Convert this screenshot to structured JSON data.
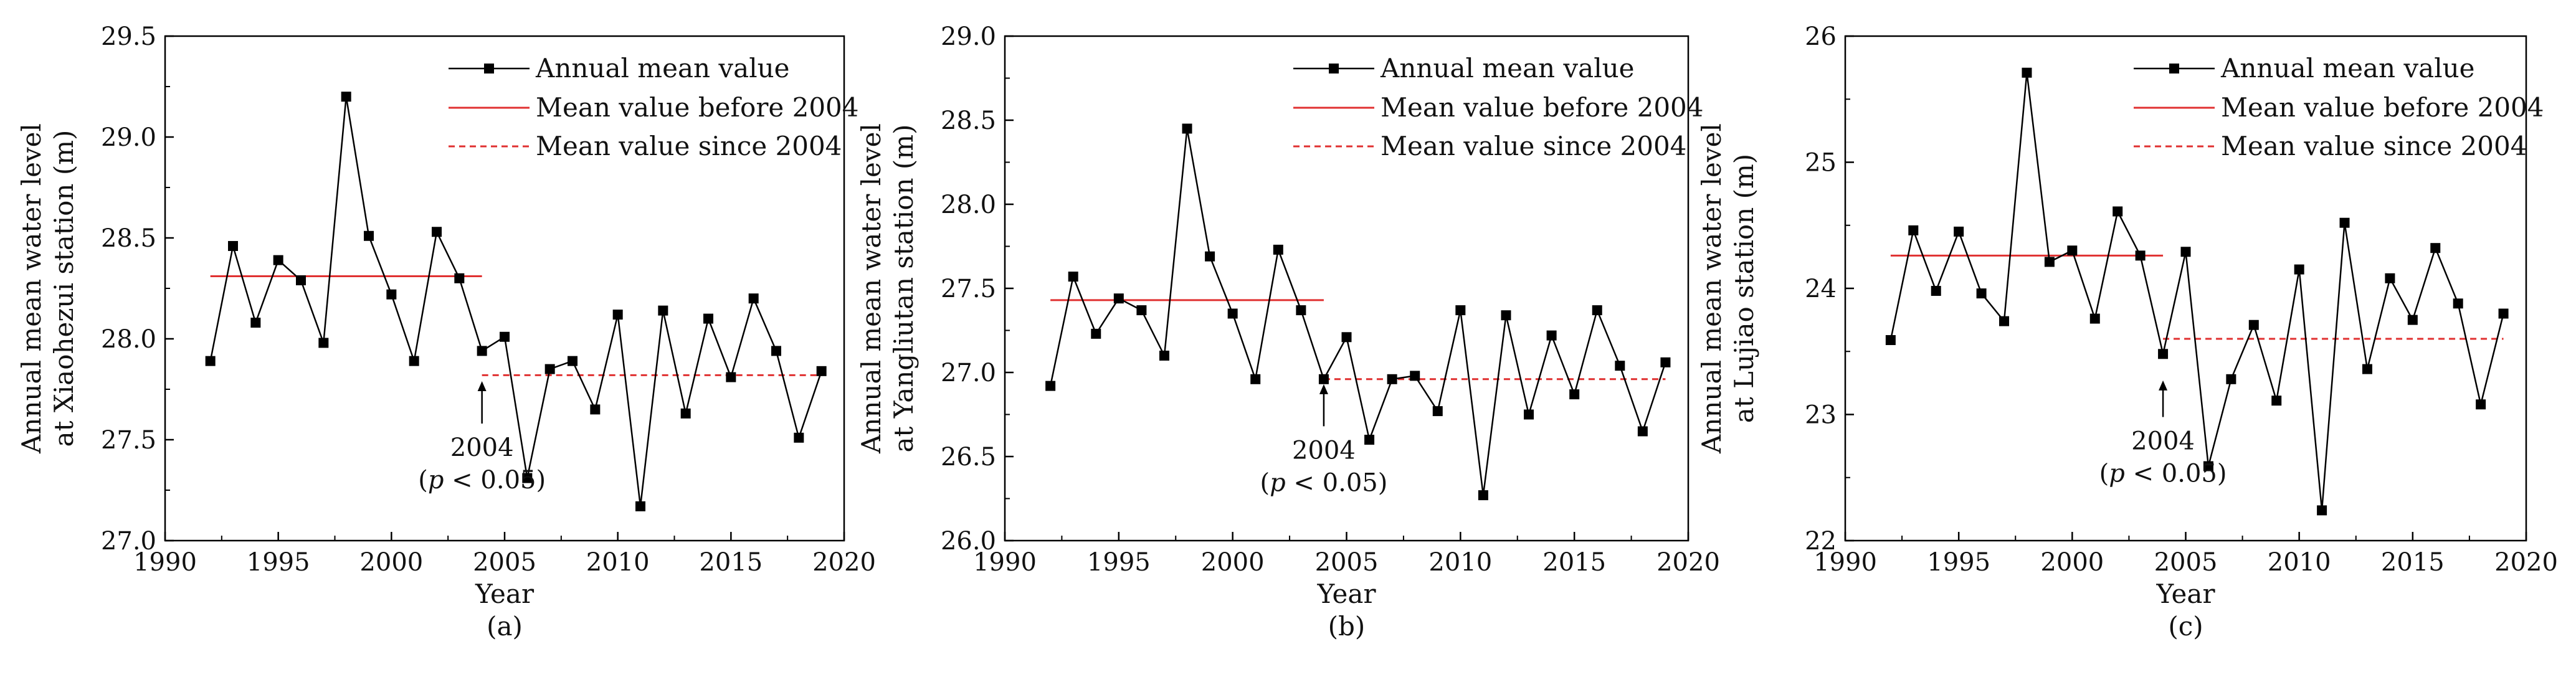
{
  "figure": {
    "panel_labels": [
      "(a)",
      "(b)",
      "(c)"
    ]
  },
  "colors": {
    "series": "#000000",
    "before": "#e03030",
    "since": "#e03030",
    "axis": "#000000"
  },
  "chart_data": [
    {
      "type": "line",
      "panel": "(a)",
      "xlabel": "Year",
      "ylabel_line1": "Annual mean water level",
      "ylabel_line2": "at Xiaohezui station (m)",
      "xlim": [
        1990,
        2020
      ],
      "ylim": [
        27.0,
        29.5
      ],
      "xticks": [
        1990,
        1995,
        2000,
        2005,
        2010,
        2015,
        2020
      ],
      "xtick_labels": [
        "1990",
        "1995",
        "2000",
        "2005",
        "2010",
        "2015",
        "2020"
      ],
      "yticks": [
        27.0,
        27.5,
        28.0,
        28.5,
        29.0,
        29.5
      ],
      "ytick_labels": [
        "27.0",
        "27.5",
        "28.0",
        "28.5",
        "29.0",
        "29.5"
      ],
      "series": [
        {
          "name": "Annual mean value",
          "x": [
            1992,
            1993,
            1994,
            1995,
            1996,
            1997,
            1998,
            1999,
            2000,
            2001,
            2002,
            2003,
            2004,
            2005,
            2006,
            2007,
            2008,
            2009,
            2010,
            2011,
            2012,
            2013,
            2014,
            2015,
            2016,
            2017,
            2018,
            2019
          ],
          "values": [
            27.89,
            28.46,
            28.08,
            28.39,
            28.29,
            27.98,
            29.2,
            28.51,
            28.22,
            27.89,
            28.53,
            28.3,
            27.94,
            28.01,
            27.31,
            27.85,
            27.89,
            27.65,
            28.12,
            27.17,
            28.14,
            27.63,
            28.1,
            27.81,
            28.2,
            27.94,
            27.51,
            27.84
          ]
        }
      ],
      "mean_before": {
        "name": "Mean value before 2004",
        "value": 28.31,
        "x_range": [
          1992,
          2004
        ]
      },
      "mean_since": {
        "name": "Mean value since 2004",
        "value": 27.82,
        "x_range": [
          2004,
          2019
        ]
      },
      "annotation": {
        "year": 2004,
        "line1": "2004",
        "pvalue_var": "p",
        "pvalue_rest": " < 0.05",
        "arrow_top": 27.79,
        "arrow_bottom": 27.58
      }
    },
    {
      "type": "line",
      "panel": "(b)",
      "xlabel": "Year",
      "ylabel_line1": "Annual mean water level",
      "ylabel_line2": "at Yangliutan station (m)",
      "xlim": [
        1990,
        2020
      ],
      "ylim": [
        26.0,
        29.0
      ],
      "xticks": [
        1990,
        1995,
        2000,
        2005,
        2010,
        2015,
        2020
      ],
      "xtick_labels": [
        "1990",
        "1995",
        "2000",
        "2005",
        "2010",
        "2015",
        "2020"
      ],
      "yticks": [
        26.0,
        26.5,
        27.0,
        27.5,
        28.0,
        28.5,
        29.0
      ],
      "ytick_labels": [
        "26.0",
        "26.5",
        "27.0",
        "27.5",
        "28.0",
        "28.5",
        "29.0"
      ],
      "series": [
        {
          "name": "Annual mean value",
          "x": [
            1992,
            1993,
            1994,
            1995,
            1996,
            1997,
            1998,
            1999,
            2000,
            2001,
            2002,
            2003,
            2004,
            2005,
            2006,
            2007,
            2008,
            2009,
            2010,
            2011,
            2012,
            2013,
            2014,
            2015,
            2016,
            2017,
            2018,
            2019
          ],
          "values": [
            26.92,
            27.57,
            27.23,
            27.44,
            27.37,
            27.1,
            28.45,
            27.69,
            27.35,
            26.96,
            27.73,
            27.37,
            26.96,
            27.21,
            26.6,
            26.96,
            26.98,
            26.77,
            27.37,
            26.27,
            27.34,
            26.75,
            27.22,
            26.87,
            27.37,
            27.04,
            26.65,
            27.06
          ]
        }
      ],
      "mean_before": {
        "name": "Mean value before 2004",
        "value": 27.43,
        "x_range": [
          1992,
          2004
        ]
      },
      "mean_since": {
        "name": "Mean value since 2004",
        "value": 26.96,
        "x_range": [
          2004,
          2019
        ]
      },
      "annotation": {
        "year": 2004,
        "line1": "2004",
        "pvalue_var": "p",
        "pvalue_rest": " < 0.05",
        "arrow_top": 26.93,
        "arrow_bottom": 26.68
      }
    },
    {
      "type": "line",
      "panel": "(c)",
      "xlabel": "Year",
      "ylabel_line1": "Annual mean water level",
      "ylabel_line2": "at Lujiao station (m)",
      "xlim": [
        1990,
        2020
      ],
      "ylim": [
        22,
        26
      ],
      "xticks": [
        1990,
        1995,
        2000,
        2005,
        2010,
        2015,
        2020
      ],
      "xtick_labels": [
        "1990",
        "1995",
        "2000",
        "2005",
        "2010",
        "2015",
        "2020"
      ],
      "yticks": [
        22,
        23,
        24,
        25,
        26
      ],
      "ytick_labels": [
        "22",
        "23",
        "24",
        "25",
        "26"
      ],
      "series": [
        {
          "name": "Annual mean value",
          "x": [
            1992,
            1993,
            1994,
            1995,
            1996,
            1997,
            1998,
            1999,
            2000,
            2001,
            2002,
            2003,
            2004,
            2005,
            2006,
            2007,
            2008,
            2009,
            2010,
            2011,
            2012,
            2013,
            2014,
            2015,
            2016,
            2017,
            2018,
            2019
          ],
          "values": [
            23.59,
            24.46,
            23.98,
            24.45,
            23.96,
            23.74,
            25.71,
            24.21,
            24.3,
            23.76,
            24.61,
            24.26,
            23.48,
            24.29,
            22.59,
            23.28,
            23.71,
            23.11,
            24.15,
            22.24,
            24.52,
            23.36,
            24.08,
            23.75,
            24.32,
            23.88,
            23.08,
            23.8
          ]
        }
      ],
      "mean_before": {
        "name": "Mean value before 2004",
        "value": 24.26,
        "x_range": [
          1992,
          2004
        ]
      },
      "mean_since": {
        "name": "Mean value since 2004",
        "value": 23.6,
        "x_range": [
          2004,
          2019
        ]
      },
      "annotation": {
        "year": 2004,
        "line1": "2004",
        "pvalue_var": "p",
        "pvalue_rest": " < 0.05",
        "arrow_top": 23.27,
        "arrow_bottom": 22.98
      }
    }
  ]
}
